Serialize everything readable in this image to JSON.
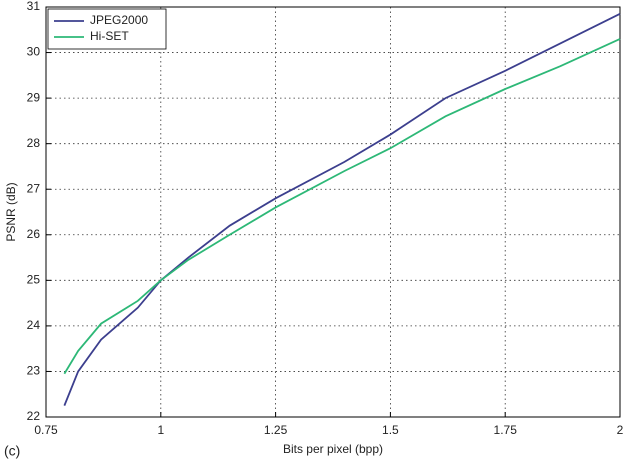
{
  "chart_data": {
    "type": "line",
    "panel_label": "(c)",
    "x_label": "Bits per pixel (bpp)",
    "y_label": "PSNR (dB)",
    "xlim": [
      0.75,
      2
    ],
    "xticks": [
      0.75,
      1,
      1.25,
      1.5,
      1.75,
      2
    ],
    "ylim": [
      22,
      31
    ],
    "yticks": [
      22,
      23,
      24,
      25,
      26,
      27,
      28,
      29,
      30,
      31
    ],
    "grid": true,
    "legend": "upper left",
    "x": [
      0.79,
      0.82,
      0.87,
      0.95,
      1.0,
      1.06,
      1.15,
      1.25,
      1.4,
      1.5,
      1.62,
      1.75,
      1.87,
      2.0
    ],
    "series": [
      {
        "name": "JPEG2000",
        "color": "#3c3f8e",
        "values": [
          22.25,
          23.0,
          23.7,
          24.4,
          25.0,
          25.5,
          26.2,
          26.8,
          27.6,
          28.2,
          29.0,
          29.6,
          30.2,
          30.85
        ]
      },
      {
        "name": "Hi-SET",
        "color": "#2db877",
        "values": [
          22.95,
          23.45,
          24.05,
          24.55,
          25.0,
          25.45,
          26.0,
          26.6,
          27.4,
          27.9,
          28.6,
          29.2,
          29.7,
          30.3
        ]
      }
    ]
  }
}
